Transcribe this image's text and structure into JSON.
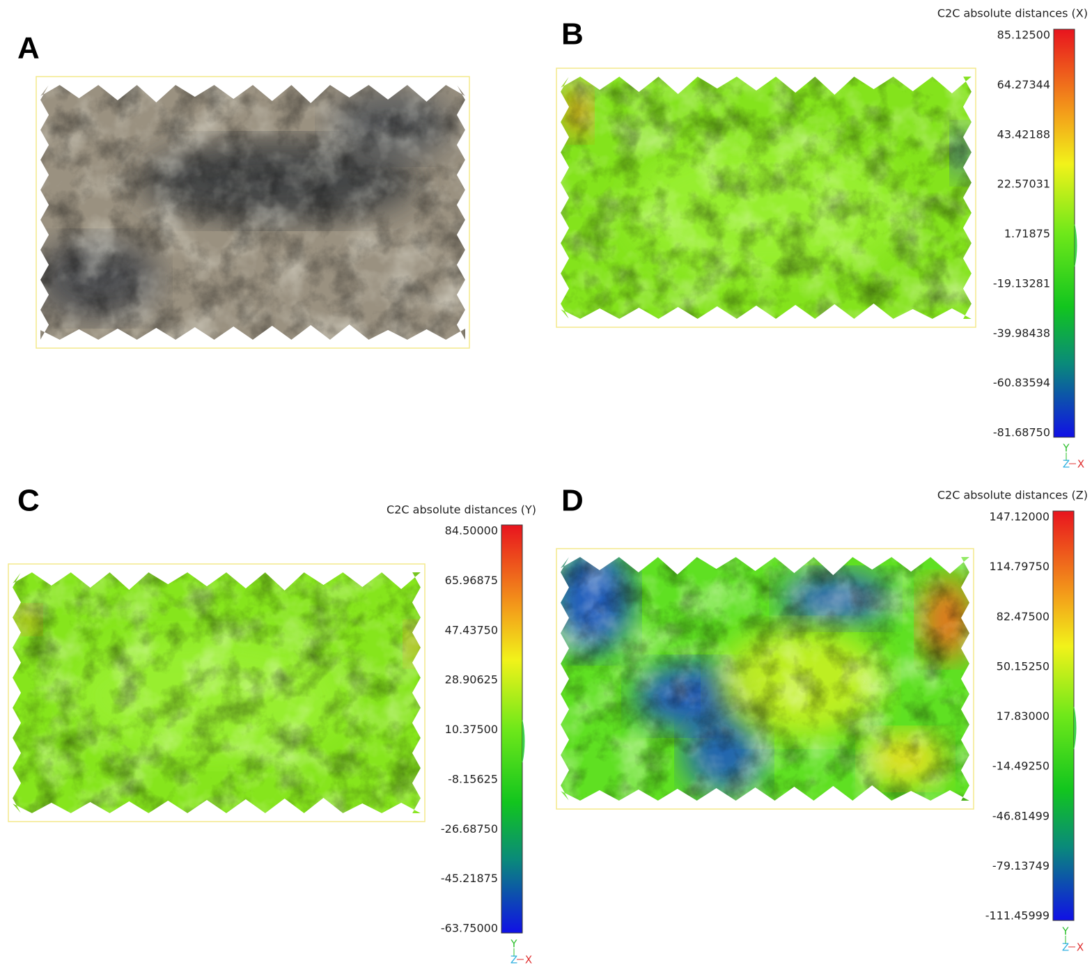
{
  "panels": [
    {
      "label": "A"
    },
    {
      "label": "B",
      "scale": {
        "title": "C2C absolute distances (X)",
        "ticks": [
          "85.12500",
          "64.27344",
          "43.42188",
          "22.57031",
          "1.71875",
          "-19.13281",
          "-39.98438",
          "-60.83594",
          "-81.68750"
        ]
      },
      "axes": [
        "Y",
        "Z",
        "X"
      ]
    },
    {
      "label": "C",
      "scale": {
        "title": "C2C absolute distances (Y)",
        "ticks": [
          "84.50000",
          "65.96875",
          "47.43750",
          "28.90625",
          "10.37500",
          "-8.15625",
          "-26.68750",
          "-45.21875",
          "-63.75000"
        ]
      },
      "axes": [
        "Y",
        "Z",
        "X"
      ]
    },
    {
      "label": "D",
      "scale": {
        "title": "C2C absolute distances (Z)",
        "ticks": [
          "147.12000",
          "114.79750",
          "82.47500",
          "50.15250",
          "17.83000",
          "-14.49250",
          "-46.81499",
          "-79.13749",
          "-111.45999"
        ]
      },
      "axes": [
        "Y",
        "Z",
        "X"
      ]
    }
  ]
}
